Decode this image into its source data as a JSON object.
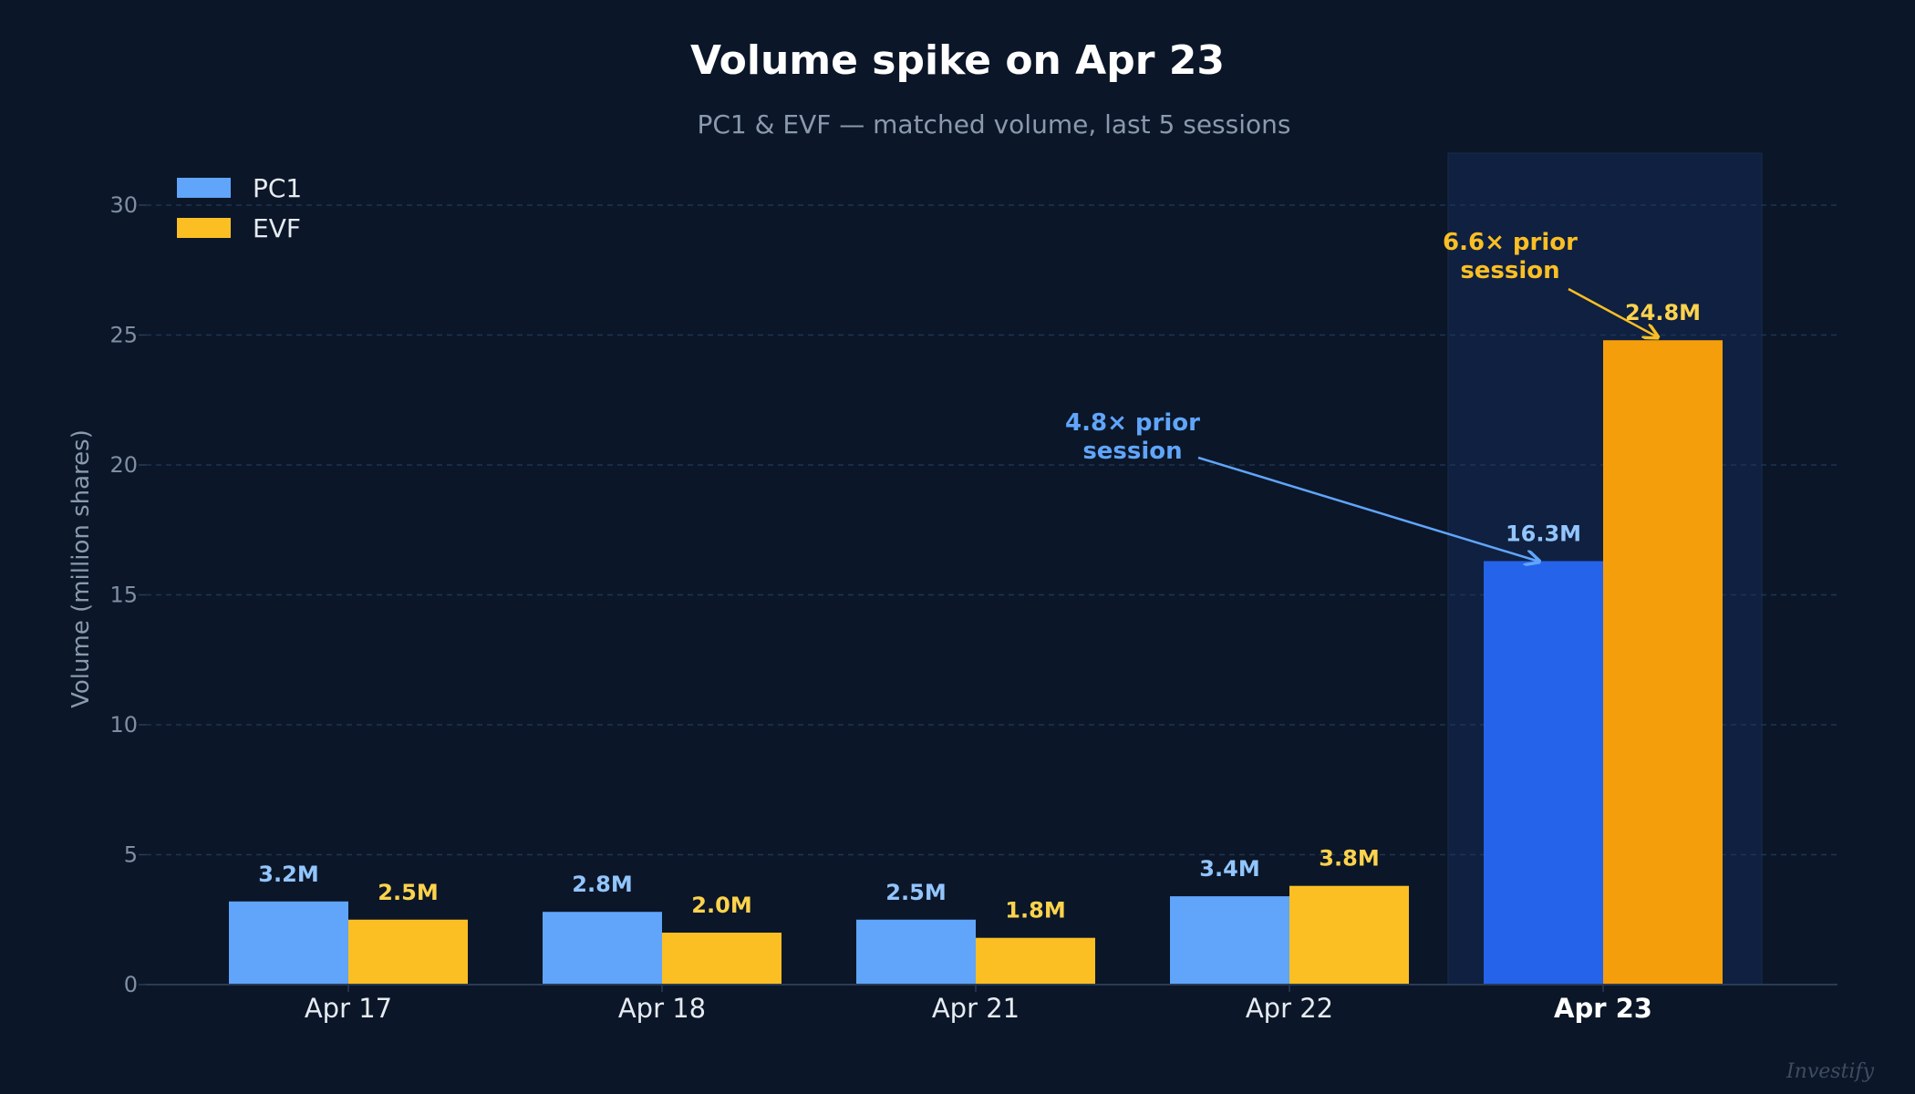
{
  "chart_data": {
    "type": "bar",
    "title": "Volume spike on Apr 23",
    "subtitle": "PC1 & EVF — matched volume, last 5 sessions",
    "ylabel": "Volume (million shares)",
    "xlabel": "",
    "categories": [
      "Apr 17",
      "Apr 18",
      "Apr 21",
      "Apr 22",
      "Apr 23"
    ],
    "highlight_category": "Apr 23",
    "ylim": [
      0,
      30
    ],
    "yticks": [
      0,
      5,
      10,
      15,
      20,
      25,
      30
    ],
    "grid": true,
    "legend_position": "top-left",
    "series": [
      {
        "name": "PC1",
        "values": [
          3.2,
          2.8,
          2.5,
          3.4,
          16.3
        ],
        "labels": [
          "3.2M",
          "2.8M",
          "2.5M",
          "3.4M",
          "16.3M"
        ],
        "color": "#60a5fa",
        "highlight_color": "#2563eb",
        "label_color": "#93c5fd"
      },
      {
        "name": "EVF",
        "values": [
          2.5,
          2.0,
          1.8,
          3.8,
          24.8
        ],
        "labels": [
          "2.5M",
          "2.0M",
          "1.8M",
          "3.8M",
          "24.8M"
        ],
        "color": "#fbbf24",
        "highlight_color": "#f59e0b",
        "label_color": "#fcd34d"
      }
    ],
    "annotations": [
      {
        "series": "PC1",
        "category": "Apr 23",
        "lines": [
          "4.8× prior",
          "session"
        ],
        "color": "#60a5fa"
      },
      {
        "series": "EVF",
        "category": "Apr 23",
        "lines": [
          "6.6× prior",
          "session"
        ],
        "color": "#fbbf24"
      }
    ],
    "watermark": "Investify"
  }
}
